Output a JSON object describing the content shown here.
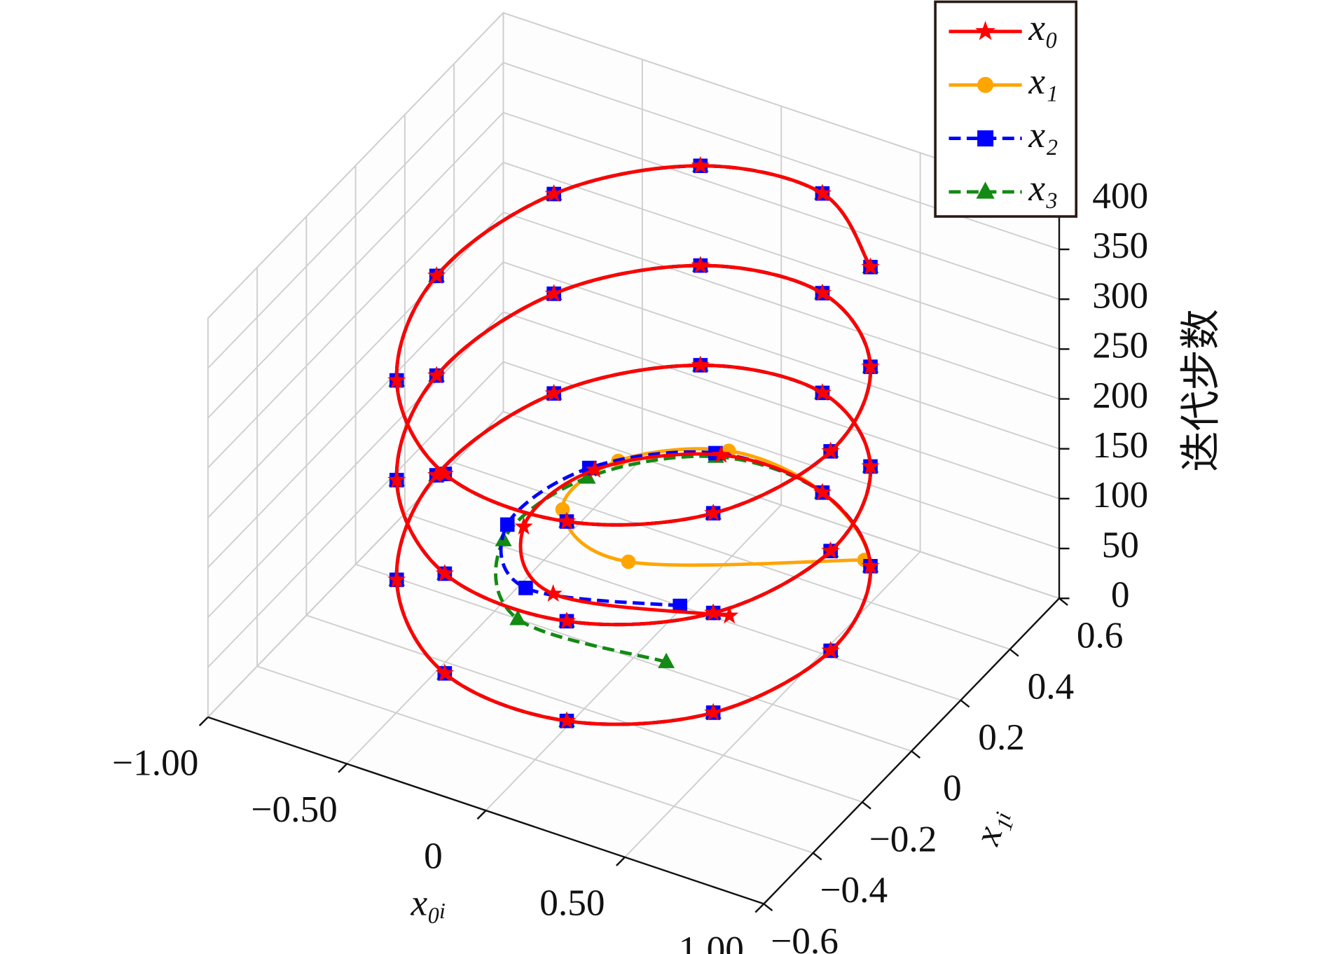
{
  "chart_data": {
    "type": "line3d",
    "xlabel": "x₀ᵢ",
    "ylabel": "x₁ᵢ",
    "zlabel": "迭代步数",
    "xlim": [
      -1,
      1
    ],
    "ylim": [
      -0.6,
      0.6
    ],
    "zlim": [
      0,
      400
    ],
    "xticks": [
      {
        "value": -1,
        "label": "−1.00"
      },
      {
        "value": -0.5,
        "label": "−0.50"
      },
      0,
      {
        "value": 0.5,
        "label": "0.50"
      },
      {
        "value": 1,
        "label": "1.00"
      }
    ],
    "yticks": [
      {
        "value": -0.6,
        "label": "−0.6"
      },
      {
        "value": -0.4,
        "label": "−0.4"
      },
      {
        "value": -0.2,
        "label": "−0.2"
      },
      0,
      0.2,
      0.4,
      0.6
    ],
    "zticks": [
      0,
      50,
      100,
      150,
      200,
      250,
      300,
      350,
      400
    ],
    "grid": true,
    "legend": "upper right",
    "z": [
      0,
      10,
      20,
      30,
      40,
      50,
      60,
      70,
      80,
      90,
      100,
      110,
      120,
      130,
      140,
      150,
      160,
      170,
      180,
      190,
      200,
      210,
      220,
      230,
      240,
      250,
      260,
      270,
      280,
      290,
      300,
      310,
      320,
      330,
      340,
      350,
      360
    ],
    "series": [
      {
        "name": "x₁",
        "color": "#ffa500",
        "marker": "circle",
        "linestyle": "solid",
        "x": [
          0.37,
          -0.24,
          -0.53,
          -0.48,
          -0.18,
          0.21,
          0.56,
          0.7,
          0.57,
          0.22,
          -0.21,
          -0.56,
          -0.7,
          -0.57,
          -0.22,
          0.21,
          0.56,
          0.7,
          0.57,
          0.22,
          -0.21,
          -0.56,
          -0.7,
          -0.57,
          -0.22,
          0.21,
          0.56,
          0.7,
          0.57,
          0.22,
          -0.21,
          -0.56,
          -0.7,
          -0.57,
          -0.22,
          0.21,
          0.56
        ],
        "y": [
          0.52,
          0.25,
          0.31,
          0.48,
          0.59,
          0.53,
          0.33,
          0.01,
          -0.32,
          -0.52,
          -0.53,
          -0.33,
          -0.01,
          0.32,
          0.52,
          0.53,
          0.33,
          0.01,
          -0.32,
          -0.52,
          -0.53,
          -0.33,
          -0.01,
          0.32,
          0.52,
          0.53,
          0.33,
          0.01,
          -0.32,
          -0.52,
          -0.53,
          -0.33,
          -0.01,
          0.32,
          0.52,
          0.53,
          0.33
        ]
      },
      {
        "name": "x₃",
        "color": "#138a13",
        "marker": "triangle",
        "linestyle": "dashed",
        "x": [
          0.1,
          -0.39,
          -0.61,
          -0.52,
          -0.2,
          0.21,
          0.56,
          0.7,
          0.57,
          0.22,
          -0.21,
          -0.56,
          -0.7,
          -0.57,
          -0.22,
          0.21,
          0.56,
          0.7,
          0.57,
          0.22,
          -0.21,
          -0.56,
          -0.7,
          -0.57,
          -0.22,
          0.21,
          0.56,
          0.7,
          0.57,
          0.22,
          -0.21,
          -0.56,
          -0.7,
          -0.57,
          -0.22,
          0.21,
          0.56
        ],
        "y": [
          0.02,
          -0.03,
          0.16,
          0.4,
          0.56,
          0.53,
          0.33,
          0.01,
          -0.32,
          -0.52,
          -0.53,
          -0.33,
          -0.01,
          0.32,
          0.52,
          0.53,
          0.33,
          0.01,
          -0.32,
          -0.52,
          -0.53,
          -0.33,
          -0.01,
          0.32,
          0.52,
          0.53,
          0.33,
          0.01,
          -0.32,
          -0.52,
          -0.53,
          -0.33,
          -0.01,
          0.32,
          0.52,
          0.53,
          0.33
        ]
      },
      {
        "name": "x₂",
        "color": "#0000ff",
        "marker": "square",
        "linestyle": "dashed",
        "x": [
          -0.01,
          -0.45,
          -0.64,
          -0.54,
          -0.21,
          0.21,
          0.56,
          0.7,
          0.57,
          0.22,
          -0.21,
          -0.56,
          -0.7,
          -0.57,
          -0.22,
          0.21,
          0.56,
          0.7,
          0.57,
          0.22,
          -0.21,
          -0.56,
          -0.7,
          -0.57,
          -0.22,
          0.21,
          0.56,
          0.7,
          0.57,
          0.22,
          -0.21,
          -0.56,
          -0.7,
          -0.57,
          -0.22,
          0.21,
          0.56
        ],
        "y": [
          0.2,
          0.07,
          0.21,
          0.43,
          0.57,
          0.53,
          0.33,
          0.01,
          -0.32,
          -0.52,
          -0.53,
          -0.33,
          -0.01,
          0.32,
          0.52,
          0.53,
          0.33,
          0.01,
          -0.32,
          -0.52,
          -0.53,
          -0.33,
          -0.01,
          0.32,
          0.52,
          0.53,
          0.33,
          0.01,
          -0.32,
          -0.52,
          -0.53,
          -0.33,
          -0.01,
          0.32,
          0.52,
          0.53,
          0.33
        ]
      },
      {
        "name": "x₀",
        "color": "#ff0000",
        "marker": "star",
        "linestyle": "solid",
        "x": [
          0.15,
          -0.36,
          -0.59,
          -0.52,
          -0.19,
          0.21,
          0.56,
          0.7,
          0.57,
          0.22,
          -0.21,
          -0.56,
          -0.7,
          -0.57,
          -0.22,
          0.21,
          0.56,
          0.7,
          0.57,
          0.22,
          -0.21,
          -0.56,
          -0.7,
          -0.57,
          -0.22,
          0.21,
          0.56,
          0.7,
          0.57,
          0.22,
          -0.21,
          -0.56,
          -0.7,
          -0.57,
          -0.22,
          0.21,
          0.56
        ],
        "y": [
          0.22,
          0.08,
          0.22,
          0.43,
          0.57,
          0.53,
          0.33,
          0.01,
          -0.32,
          -0.52,
          -0.53,
          -0.33,
          -0.01,
          0.32,
          0.52,
          0.53,
          0.33,
          0.01,
          -0.32,
          -0.52,
          -0.53,
          -0.33,
          -0.01,
          0.32,
          0.52,
          0.53,
          0.33,
          0.01,
          -0.32,
          -0.52,
          -0.53,
          -0.33,
          -0.01,
          0.32,
          0.52,
          0.53,
          0.33
        ]
      }
    ]
  }
}
